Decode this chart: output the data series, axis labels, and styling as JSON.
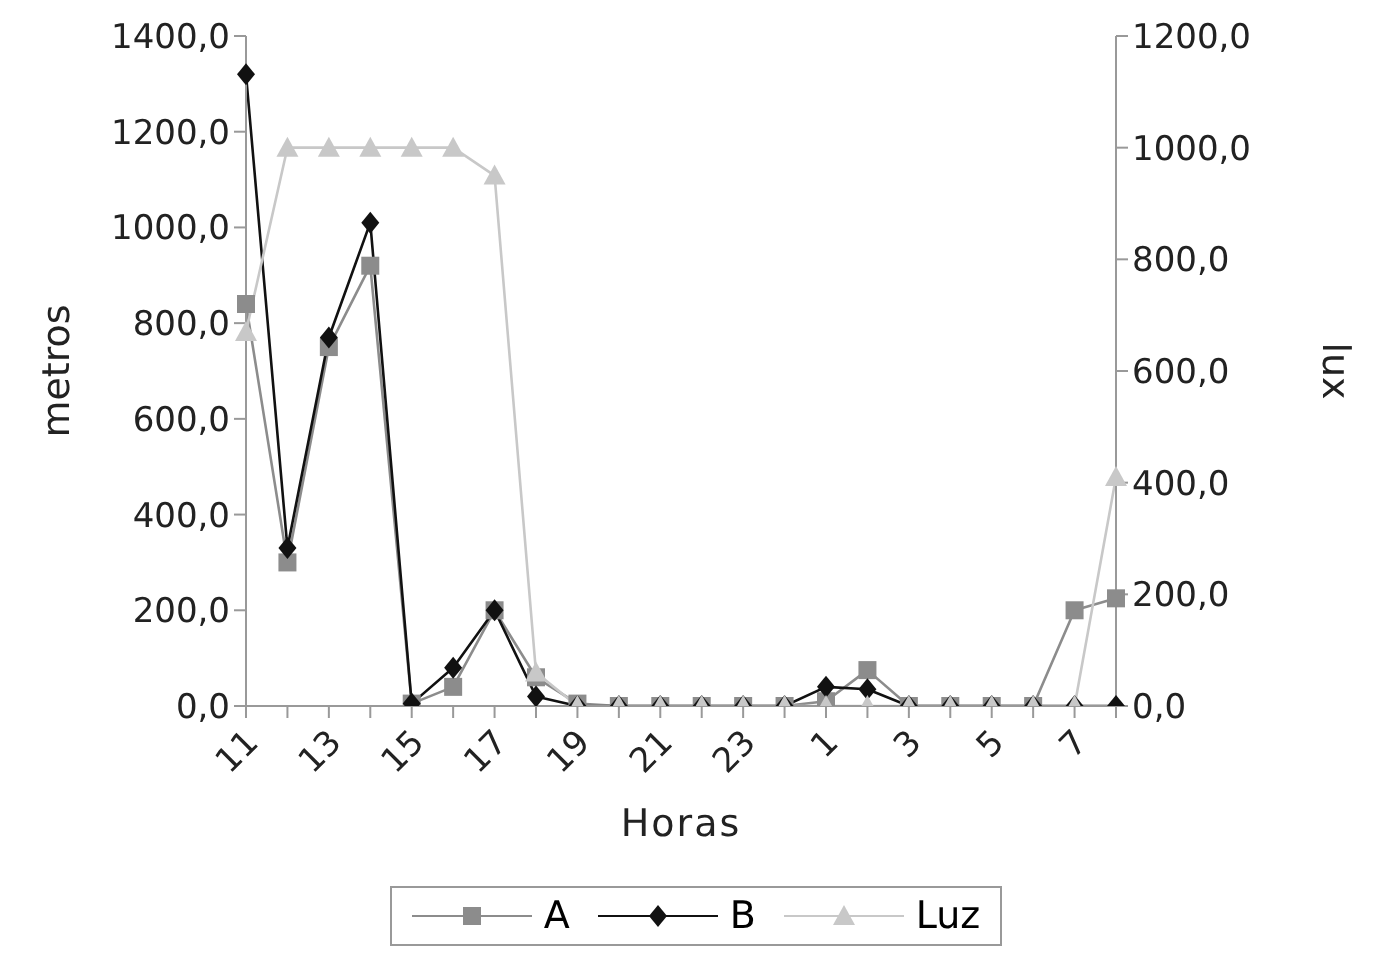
{
  "chart_data": {
    "type": "line",
    "xlabel": "Horas",
    "ylabel": "metros",
    "y2label": "lux",
    "categories": [
      "11",
      null,
      "13",
      null,
      "15",
      null,
      "17",
      null,
      "19",
      null,
      "21",
      null,
      "23",
      null,
      "1",
      null,
      "3",
      null,
      "5",
      null,
      "7",
      null
    ],
    "series": [
      {
        "name": "A",
        "color": "#8c8c8c",
        "marker": "square",
        "values": [
          840,
          300,
          750,
          920,
          5,
          40,
          200,
          60,
          5,
          0,
          0,
          0,
          0,
          0,
          10,
          75,
          0,
          0,
          0,
          0,
          200,
          225
        ]
      },
      {
        "name": "B",
        "color": "#111111",
        "marker": "diamond",
        "values": [
          1320,
          330,
          770,
          1010,
          5,
          80,
          200,
          20,
          0,
          0,
          0,
          0,
          0,
          0,
          40,
          35,
          0,
          0,
          0,
          0,
          0,
          0
        ]
      },
      {
        "name": "Luz",
        "color": "#c8c8c8",
        "marker": "triangle",
        "axis": "y2",
        "values": [
          670,
          1000,
          1000,
          1000,
          1000,
          1000,
          950,
          60,
          0,
          0,
          0,
          0,
          0,
          0,
          0,
          0,
          0,
          0,
          0,
          0,
          0,
          410
        ]
      }
    ],
    "ylim": [
      0,
      1400
    ],
    "yticks": [
      {
        "value": 0,
        "label": "0,0"
      },
      {
        "value": 200,
        "label": "200,0"
      },
      {
        "value": 400,
        "label": "400,0"
      },
      {
        "value": 600,
        "label": "600,0"
      },
      {
        "value": 800,
        "label": "800,0"
      },
      {
        "value": 1000,
        "label": "1000,0"
      },
      {
        "value": 1200,
        "label": "1200,0"
      },
      {
        "value": 1400,
        "label": "1400,0"
      }
    ],
    "y2lim": [
      0,
      1200
    ],
    "y2ticks": [
      {
        "value": 0,
        "label": "0,0"
      },
      {
        "value": 200,
        "label": "200,0"
      },
      {
        "value": 400,
        "label": "400,0"
      },
      {
        "value": 600,
        "label": "600,0"
      },
      {
        "value": 800,
        "label": "800,0"
      },
      {
        "value": 1000,
        "label": "1000,0"
      },
      {
        "value": 1200,
        "label": "1200,0"
      }
    ],
    "legend": "bottom",
    "line_style": "solid"
  }
}
